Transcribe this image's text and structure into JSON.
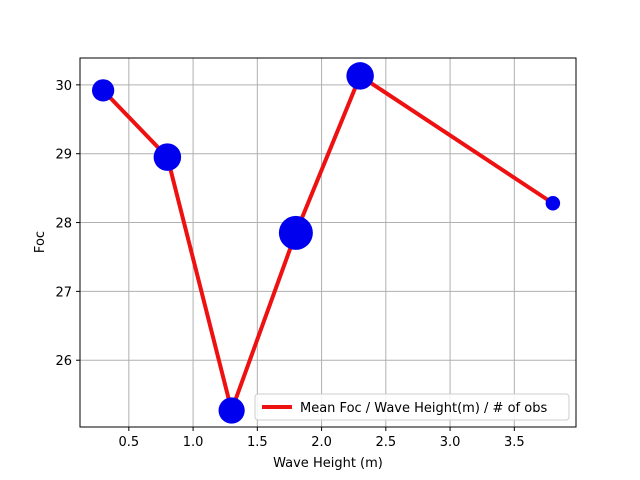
{
  "chart_data": {
    "type": "line",
    "title": "",
    "xlabel": "Wave Height (m)",
    "ylabel": "Foc",
    "xlim": [
      0.12,
      3.98
    ],
    "ylim": [
      25.03,
      30.39
    ],
    "x_ticks": [
      0.5,
      1.0,
      1.5,
      2.0,
      2.5,
      3.0,
      3.5
    ],
    "x_tick_labels": [
      "0.5",
      "1.0",
      "1.5",
      "2.0",
      "2.5",
      "3.0",
      "3.5"
    ],
    "y_ticks": [
      26,
      27,
      28,
      29,
      30
    ],
    "y_tick_labels": [
      "26",
      "27",
      "28",
      "29",
      "30"
    ],
    "grid": true,
    "legend_position": "lower-right",
    "series": [
      {
        "name": "Mean Foc / Wave Height(m) / # of obs",
        "color": "#ee1111",
        "marker_color": "#0000ee",
        "x": [
          0.3,
          0.8,
          1.3,
          1.8,
          2.3,
          3.8
        ],
        "y": [
          29.92,
          28.95,
          25.27,
          27.85,
          30.13,
          28.28
        ],
        "obs_relative_size": [
          0.55,
          0.75,
          0.7,
          1.0,
          0.75,
          0.25
        ]
      }
    ]
  }
}
